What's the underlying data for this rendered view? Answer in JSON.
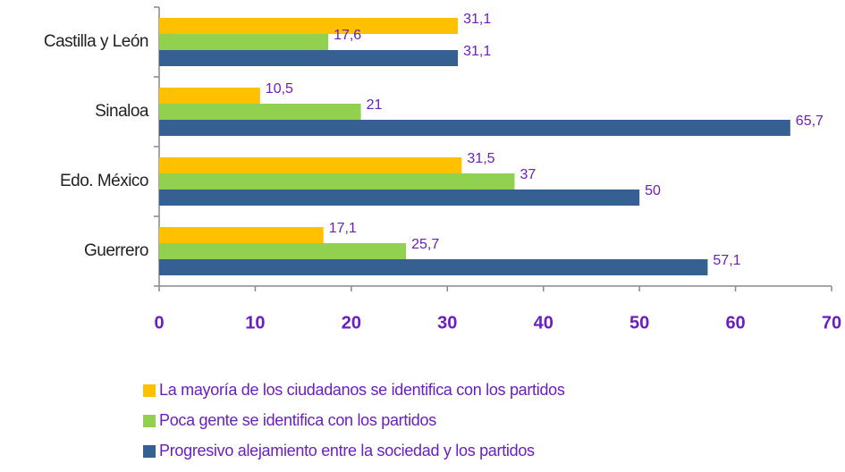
{
  "chart_data": {
    "type": "hbar",
    "categories": [
      "Castilla y León",
      "Sinaloa",
      "Edo. México",
      "Guerrero"
    ],
    "series": [
      {
        "name": "La mayoría de los ciudadanos se identifica con los partidos",
        "color": "#ffc000",
        "values": [
          31.1,
          10.5,
          31.5,
          17.1
        ],
        "value_labels": [
          "31,1",
          "10,5",
          "31,5",
          "17,1"
        ]
      },
      {
        "name": "Poca gente se identifica con los partidos",
        "color": "#92d050",
        "values": [
          17.6,
          21,
          37,
          25.7
        ],
        "value_labels": [
          "17,6",
          "21",
          "37",
          "25,7"
        ]
      },
      {
        "name": "Progresivo alejamiento entre la sociedad y los partidos",
        "color": "#376092",
        "values": [
          31.1,
          65.7,
          50,
          57.1
        ],
        "value_labels": [
          "31,1",
          "65,7",
          "50",
          "57,1"
        ]
      }
    ],
    "xlim": [
      0,
      70
    ],
    "xticks": [
      0,
      10,
      20,
      30,
      40,
      50,
      60,
      70
    ]
  }
}
